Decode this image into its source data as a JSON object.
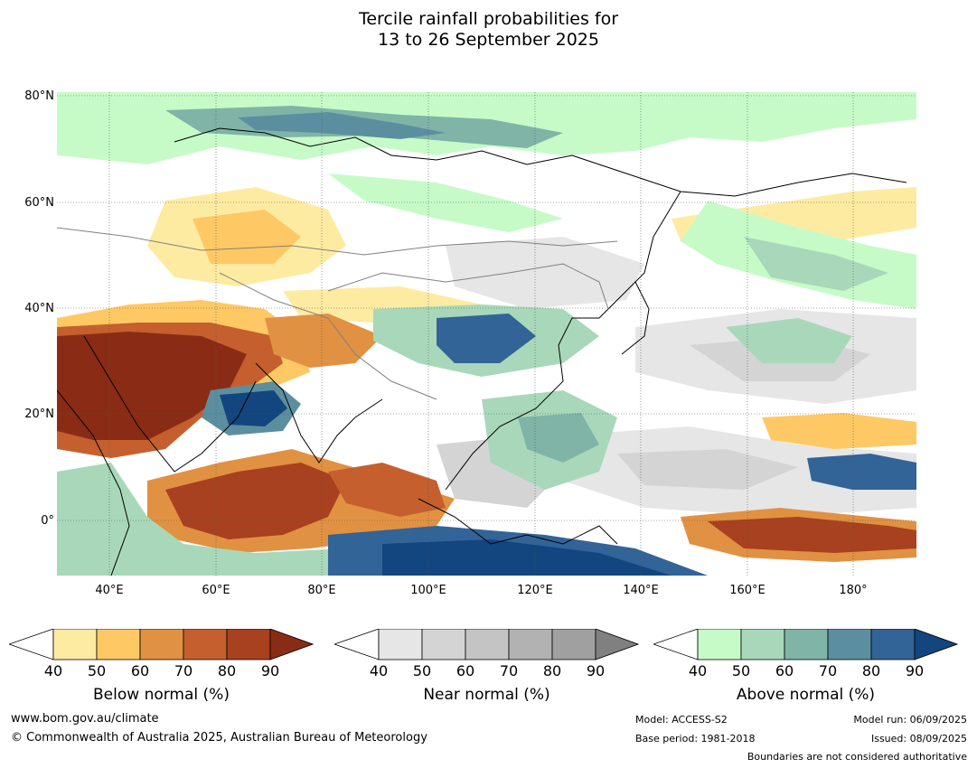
{
  "title": {
    "line1": "Tercile rainfall probabilities for",
    "line2": "13 to 26 September 2025"
  },
  "map": {
    "lat_labels": [
      "80°N",
      "60°N",
      "40°N",
      "20°N",
      "0°"
    ],
    "lon_labels": [
      "40°E",
      "60°E",
      "80°E",
      "100°E",
      "120°E",
      "140°E",
      "160°E",
      "180°"
    ]
  },
  "legends": [
    {
      "caption": "Below normal (%)",
      "ticks": [
        "40",
        "50",
        "60",
        "70",
        "80",
        "90"
      ],
      "colors": [
        "#ffffff",
        "#feeba2",
        "#fec965",
        "#e19142",
        "#c5602e",
        "#a8411f",
        "#8a2c15"
      ]
    },
    {
      "caption": "Near normal (%)",
      "ticks": [
        "40",
        "50",
        "60",
        "70",
        "80",
        "90"
      ],
      "colors": [
        "#ffffff",
        "#e6e6e6",
        "#d4d4d4",
        "#c4c4c4",
        "#b2b2b2",
        "#a0a0a0",
        "#808080"
      ]
    },
    {
      "caption": "Above normal (%)",
      "ticks": [
        "40",
        "50",
        "60",
        "70",
        "80",
        "90"
      ],
      "colors": [
        "#ffffff",
        "#c6fbc8",
        "#a8d8b9",
        "#7fb4a7",
        "#5b8fa0",
        "#326498",
        "#13467e"
      ]
    }
  ],
  "footer": {
    "website": "www.bom.gov.au/climate",
    "copyright": "© Commonwealth of Australia 2025, Australian Bureau of Meteorology",
    "model": "Model: ACCESS-S2",
    "base_period": "Base period: 1981-2018",
    "model_run": "Model run: 06/09/2025",
    "issued": "Issued: 08/09/2025",
    "boundaries": "Boundaries are not considered authoritative"
  }
}
